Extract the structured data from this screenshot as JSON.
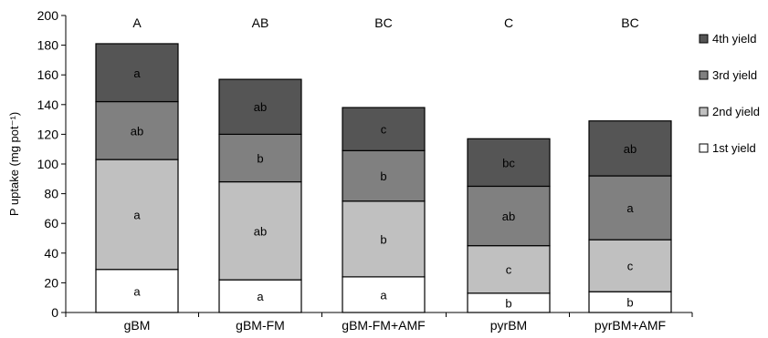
{
  "chart_data": {
    "type": "bar",
    "stacked": true,
    "ylabel": "P uptake (mg pot⁻¹)",
    "xlabel": "",
    "ylim": [
      0,
      200
    ],
    "yticks": [
      0,
      20,
      40,
      60,
      80,
      100,
      120,
      140,
      160,
      180,
      200
    ],
    "categories": [
      "gBM",
      "gBM-FM",
      "gBM-FM+AMF",
      "pyrBM",
      "pyrBM+AMF"
    ],
    "total_letters": [
      "A",
      "AB",
      "BC",
      "C",
      "BC"
    ],
    "series": [
      {
        "name": "1st yield",
        "color": "#ffffff",
        "values": [
          29,
          22,
          24,
          13,
          14
        ],
        "letters": [
          "a",
          "a",
          "a",
          "b",
          "b"
        ]
      },
      {
        "name": "2nd yield",
        "color": "#c0c0c0",
        "values": [
          74,
          66,
          51,
          32,
          35
        ],
        "letters": [
          "a",
          "ab",
          "b",
          "c",
          "c"
        ]
      },
      {
        "name": "3rd yield",
        "color": "#808080",
        "values": [
          39,
          32,
          34,
          40,
          43
        ],
        "letters": [
          "ab",
          "b",
          "b",
          "ab",
          "a"
        ]
      },
      {
        "name": "4th yield",
        "color": "#555555",
        "values": [
          39,
          37,
          29,
          32,
          37
        ],
        "letters": [
          "a",
          "ab",
          "c",
          "bc",
          "ab"
        ]
      }
    ],
    "legend_position": "right",
    "grid": false
  }
}
